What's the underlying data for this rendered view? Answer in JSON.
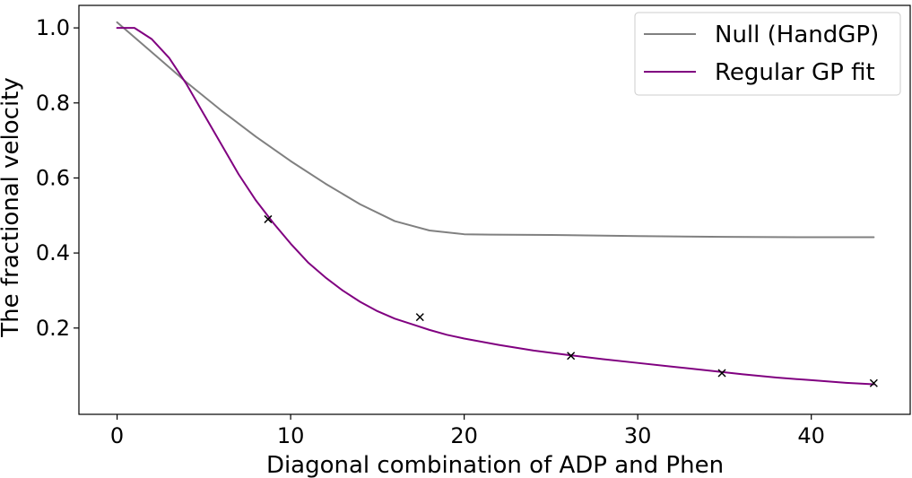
{
  "chart_data": {
    "type": "line",
    "xlabel": "Diagonal combination of ADP and Phen",
    "ylabel": "The fractional velocity",
    "xlim": [
      -2.2,
      45.7
    ],
    "ylim": [
      -0.03,
      1.06
    ],
    "x_ticks": [
      0,
      10,
      20,
      30,
      40
    ],
    "y_ticks": [
      0.2,
      0.4,
      0.6,
      0.8,
      1.0
    ],
    "x_tick_labels": [
      "0",
      "10",
      "20",
      "30",
      "40"
    ],
    "y_tick_labels": [
      "0.2",
      "0.4",
      "0.6",
      "0.8",
      "1.0"
    ],
    "grid": false,
    "legend_position": "top-right",
    "series": [
      {
        "name": "Null (HandGP)",
        "color": "#808080",
        "style": "line",
        "x": [
          0,
          2,
          4,
          6,
          8,
          10,
          12,
          14,
          16,
          18,
          20,
          21.5,
          25,
          30,
          35,
          40,
          43.6
        ],
        "y": [
          1.015,
          0.935,
          0.855,
          0.78,
          0.71,
          0.645,
          0.585,
          0.53,
          0.485,
          0.46,
          0.45,
          0.449,
          0.448,
          0.445,
          0.443,
          0.442,
          0.442
        ]
      },
      {
        "name": "Regular GP fit",
        "color": "#800080",
        "style": "line",
        "x": [
          0,
          1,
          2,
          3,
          4,
          5,
          6,
          7,
          8,
          9,
          10,
          11,
          12,
          13,
          14,
          15,
          16,
          17,
          18,
          19,
          20,
          22,
          24,
          26,
          28,
          30,
          32,
          34,
          36,
          38,
          40,
          42,
          43.6
        ],
        "y": [
          1.0,
          1.0,
          0.97,
          0.92,
          0.85,
          0.77,
          0.69,
          0.61,
          0.54,
          0.48,
          0.425,
          0.375,
          0.335,
          0.3,
          0.27,
          0.245,
          0.225,
          0.21,
          0.195,
          0.182,
          0.172,
          0.155,
          0.14,
          0.128,
          0.117,
          0.107,
          0.097,
          0.087,
          0.077,
          0.068,
          0.061,
          0.054,
          0.05
        ]
      },
      {
        "name": "",
        "color": "#000000",
        "style": "marker-x",
        "x": [
          8.7,
          17.45,
          26.15,
          34.85,
          43.6
        ],
        "y": [
          0.49,
          0.229,
          0.126,
          0.08,
          0.053
        ]
      }
    ]
  }
}
